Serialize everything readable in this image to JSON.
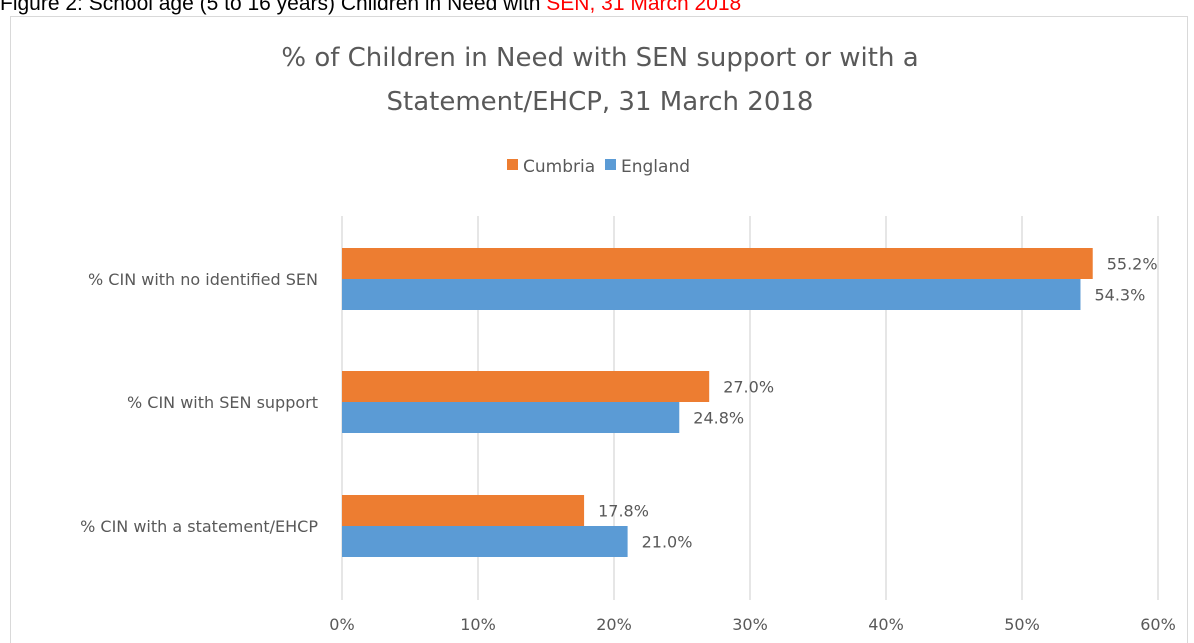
{
  "caption": {
    "prefix": "Figure 2: School age (5 to 16 years) Children in Need with ",
    "highlight": "SEN, 31 March 2018"
  },
  "colors": {
    "cumbria": "#ed7d31",
    "england": "#5b9bd5",
    "grid": "#d9d9d9",
    "text": "#595959",
    "highlight": "#ff0000"
  },
  "chart_data": {
    "type": "bar",
    "orientation": "horizontal",
    "title_lines": [
      "% of Children in Need with SEN support or with a",
      "Statement/EHCP, 31 March 2018"
    ],
    "categories": [
      "% CIN with no identified SEN",
      "% CIN with SEN support",
      "% CIN with a statement/EHCP"
    ],
    "series": [
      {
        "name": "Cumbria",
        "values": [
          55.2,
          27.0,
          17.8
        ],
        "labels": [
          "55.2%",
          "27.0%",
          "17.8%"
        ]
      },
      {
        "name": "England",
        "values": [
          54.3,
          24.8,
          21.0
        ],
        "labels": [
          "54.3%",
          "24.8%",
          "21.0%"
        ]
      }
    ],
    "xlim": [
      0,
      60
    ],
    "xticks": [
      0,
      10,
      20,
      30,
      40,
      50,
      60
    ],
    "xtick_labels": [
      "0%",
      "10%",
      "20%",
      "30%",
      "40%",
      "50%",
      "60%"
    ],
    "gridlines": "vertical",
    "legend_position": "top"
  }
}
